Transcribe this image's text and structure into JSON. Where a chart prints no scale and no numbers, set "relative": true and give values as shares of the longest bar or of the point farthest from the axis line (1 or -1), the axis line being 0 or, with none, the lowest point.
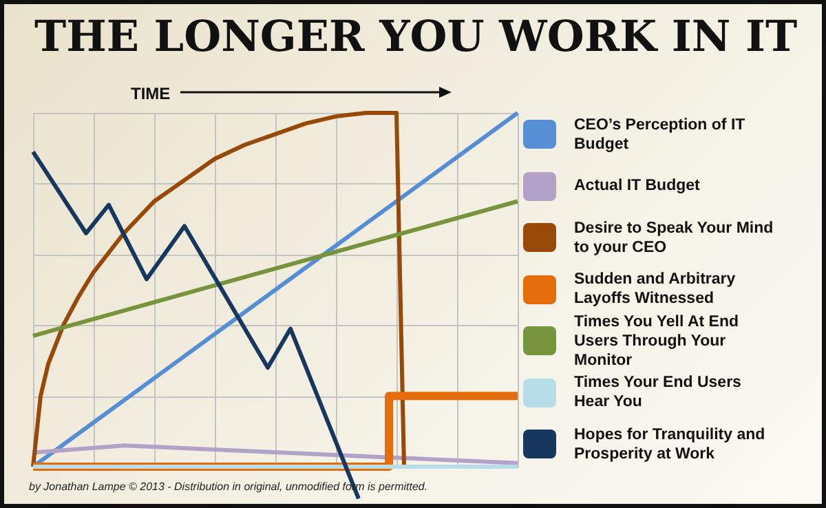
{
  "chart_data": {
    "type": "line",
    "title": "THE LONGER YOU WORK IN IT",
    "xlabel": "TIME",
    "relative": true,
    "grid": true,
    "legend": "right",
    "annotations": [
      "by Jonathan Lampe © 2013 - Distribution in original, unmodified form is permitted."
    ],
    "categories": [
      null,
      null,
      null,
      null,
      null,
      null,
      null,
      null,
      null,
      null,
      null,
      null,
      null,
      null,
      null,
      null,
      null,
      null,
      null,
      null,
      null,
      null,
      null,
      null,
      null,
      null,
      null,
      null,
      null,
      null,
      null,
      null,
      null,
      null,
      null,
      null,
      null,
      null,
      null,
      null,
      null,
      null,
      null,
      null,
      null,
      null,
      null,
      null,
      null,
      null,
      null,
      null,
      null,
      null,
      null,
      null,
      null,
      null,
      null,
      null,
      null,
      null,
      null,
      null,
      null
    ],
    "series": [
      {
        "name": "CEO’s Perception of IT Budget",
        "color": "#558ed5",
        "values": [
          0,
          null,
          null,
          null,
          null,
          null,
          null,
          null,
          null,
          null,
          null,
          null,
          null,
          null,
          null,
          null,
          null,
          null,
          null,
          null,
          null,
          null,
          null,
          null,
          null,
          null,
          null,
          null,
          null,
          null,
          null,
          null,
          null,
          null,
          null,
          null,
          null,
          null,
          null,
          null,
          null,
          null,
          null,
          null,
          null,
          null,
          null,
          null,
          null,
          null,
          null,
          null,
          null,
          null,
          null,
          null,
          null,
          null,
          null,
          null,
          null,
          null,
          null,
          null,
          1
        ]
      },
      {
        "name": "Actual IT Budget",
        "color": "#b3a2c7",
        "values": [
          0.04,
          null,
          null,
          null,
          null,
          null,
          null,
          null,
          null,
          null,
          null,
          null,
          0.06,
          null,
          null,
          null,
          null,
          null,
          null,
          null,
          null,
          null,
          null,
          null,
          null,
          null,
          null,
          null,
          null,
          null,
          null,
          null,
          null,
          null,
          null,
          null,
          null,
          null,
          null,
          null,
          null,
          null,
          null,
          null,
          null,
          null,
          null,
          null,
          null,
          null,
          null,
          null,
          null,
          null,
          null,
          null,
          null,
          null,
          null,
          null,
          null,
          null,
          null,
          null,
          0.01
        ]
      },
      {
        "name": "Desire to Speak Your Mind to your CEO",
        "color": "#984807",
        "values": [
          0,
          0.2,
          0.29,
          null,
          0.4,
          null,
          0.48,
          null,
          0.55,
          null,
          null,
          null,
          0.66,
          null,
          null,
          null,
          0.75,
          null,
          null,
          null,
          0.81,
          null,
          null,
          null,
          0.87,
          null,
          null,
          null,
          0.91,
          null,
          null,
          null,
          0.94,
          null,
          null,
          null,
          0.97,
          null,
          null,
          null,
          0.99,
          null,
          null,
          null,
          1,
          null,
          null,
          null,
          1,
          0,
          null,
          null,
          null,
          null,
          null,
          null,
          null,
          null,
          null,
          null,
          null,
          null,
          null,
          null,
          0
        ]
      },
      {
        "name": "Sudden and Arbitrary Layoffs Witnessed",
        "type": "step",
        "color": "#e46c0a",
        "values": [
          0,
          null,
          null,
          null,
          null,
          null,
          null,
          null,
          null,
          null,
          null,
          null,
          null,
          null,
          null,
          null,
          null,
          null,
          null,
          null,
          null,
          null,
          null,
          null,
          null,
          null,
          null,
          null,
          null,
          null,
          null,
          null,
          null,
          null,
          null,
          null,
          null,
          null,
          null,
          null,
          null,
          null,
          null,
          null,
          null,
          null,
          0,
          null,
          0.2,
          null,
          null,
          null,
          null,
          null,
          null,
          null,
          null,
          null,
          null,
          null,
          null,
          null,
          null,
          null,
          0.2
        ]
      },
      {
        "name": "Times You Yell At End Users Through Your Monitor",
        "color": "#77933c",
        "values": [
          0.37,
          null,
          null,
          null,
          null,
          null,
          null,
          null,
          null,
          null,
          null,
          null,
          null,
          null,
          null,
          null,
          null,
          null,
          null,
          null,
          null,
          null,
          null,
          null,
          null,
          null,
          null,
          null,
          null,
          null,
          null,
          null,
          null,
          null,
          null,
          null,
          null,
          null,
          null,
          null,
          null,
          null,
          null,
          null,
          null,
          null,
          null,
          null,
          null,
          null,
          null,
          null,
          null,
          null,
          null,
          null,
          null,
          null,
          null,
          null,
          null,
          null,
          null,
          null,
          0.75
        ]
      },
      {
        "name": "Times Your End Users Hear You",
        "color": "#b7dee8",
        "values": [
          0,
          null,
          null,
          null,
          null,
          null,
          null,
          null,
          null,
          null,
          null,
          null,
          null,
          null,
          null,
          null,
          null,
          null,
          null,
          null,
          null,
          null,
          null,
          null,
          null,
          null,
          null,
          null,
          null,
          null,
          null,
          null,
          null,
          null,
          null,
          null,
          null,
          null,
          null,
          null,
          null,
          null,
          null,
          null,
          null,
          null,
          null,
          null,
          null,
          null,
          null,
          null,
          null,
          null,
          null,
          null,
          null,
          null,
          null,
          null,
          null,
          null,
          null,
          null,
          0
        ]
      },
      {
        "name": "Hopes for Tranquility and Prosperity at Work",
        "color": "#17375e",
        "values": [
          0.89,
          null,
          null,
          null,
          null,
          null,
          null,
          0.66,
          null,
          null,
          0.74,
          null,
          null,
          null,
          null,
          0.53,
          null,
          null,
          null,
          null,
          0.68,
          null,
          null,
          null,
          null,
          null,
          null,
          null,
          null,
          null,
          null,
          0.28,
          null,
          null,
          0.39,
          null,
          null,
          null,
          null,
          null,
          null,
          null,
          null,
          -0.09,
          null,
          null,
          null,
          null,
          null,
          null,
          null,
          null,
          null,
          null,
          null,
          null,
          null,
          null,
          null,
          null,
          null,
          null,
          null,
          null,
          null
        ]
      }
    ]
  }
}
